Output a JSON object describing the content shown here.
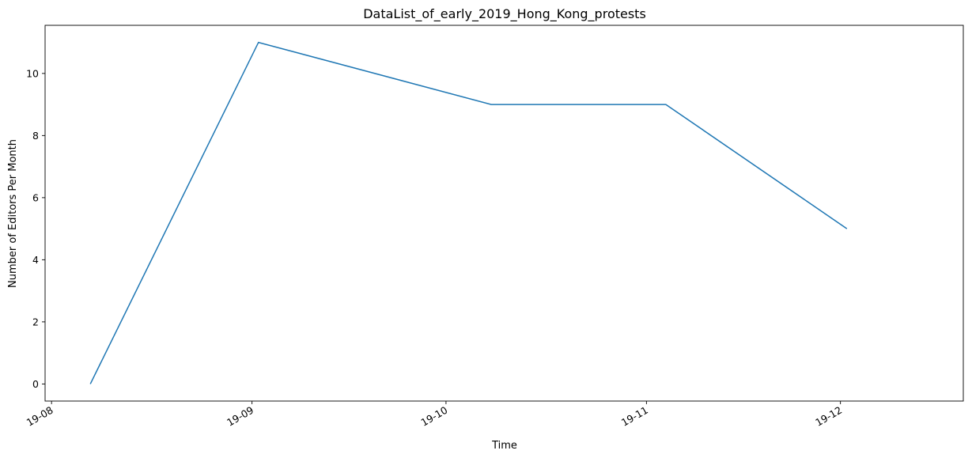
{
  "chart_data": {
    "type": "line",
    "title": "DataList_of_early_2019_Hong_Kong_protests",
    "xlabel": "Time",
    "ylabel": "Number of Editors Per Month",
    "x_tick_labels": [
      "19-08",
      "19-09",
      "19-10",
      "19-11",
      "19-12"
    ],
    "y_ticks": [
      0,
      2,
      4,
      6,
      8,
      10
    ],
    "ylim": [
      -0.55,
      11.55
    ],
    "xlim": [
      "2019-07-31",
      "2019-12-20"
    ],
    "grid": false,
    "color": "#1f77b4",
    "series": [
      {
        "x": [
          "2019-08-07",
          "2019-09-02",
          "2019-10-08",
          "2019-11-04",
          "2019-12-02"
        ],
        "values": [
          0,
          11,
          9,
          9,
          5
        ]
      }
    ]
  }
}
